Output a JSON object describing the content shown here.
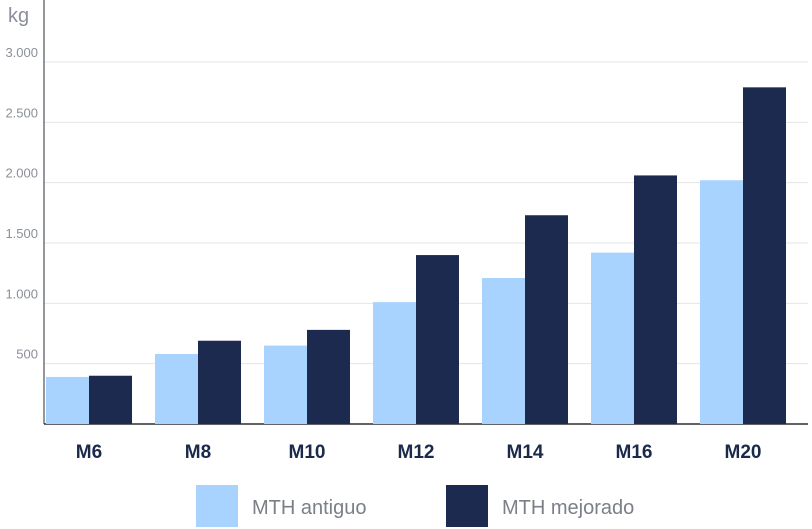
{
  "chart_data": {
    "type": "bar",
    "ylabel": "kg",
    "categories": [
      "M6",
      "M8",
      "M10",
      "M12",
      "M14",
      "M16",
      "M20"
    ],
    "series": [
      {
        "name": "MTH antiguo",
        "color": "#a9d3ff",
        "values": [
          390,
          580,
          650,
          1010,
          1210,
          1420,
          2020
        ]
      },
      {
        "name": "MTH mejorado",
        "color": "#1b2a4e",
        "values": [
          400,
          690,
          780,
          1400,
          1730,
          2060,
          2790
        ]
      }
    ],
    "ylim": [
      0,
      3000
    ],
    "yticks": [
      500,
      1000,
      1500,
      2000,
      2500,
      3000
    ],
    "ytick_labels": [
      "500",
      "1.000",
      "1.500",
      "2.000",
      "2.500",
      "3.000"
    ],
    "grid": true,
    "legend_position": "bottom-center"
  }
}
